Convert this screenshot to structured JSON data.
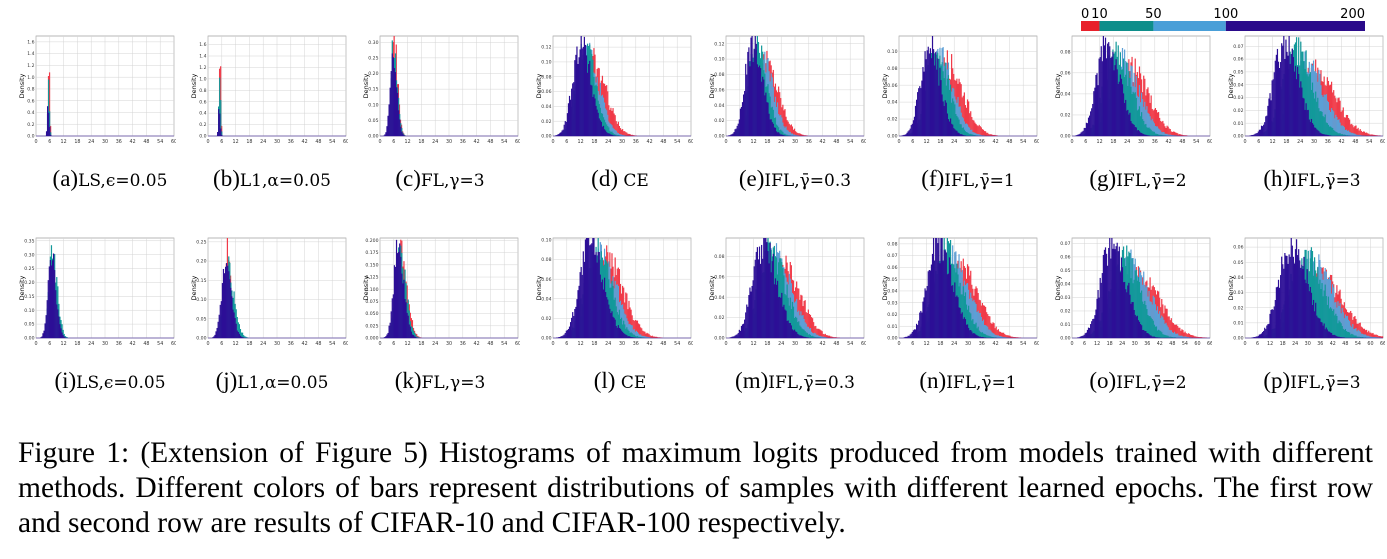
{
  "legend": {
    "ticks": [
      "0",
      "10",
      "50",
      "100",
      "200"
    ],
    "segments": [
      {
        "from": 0,
        "to": 10,
        "color": "#e8202a"
      },
      {
        "from": 10,
        "to": 50,
        "color": "#0e8e8a"
      },
      {
        "from": 50,
        "to": 100,
        "color": "#4a9fd8"
      },
      {
        "from": 100,
        "to": 200,
        "color": "#2a0a8a"
      }
    ]
  },
  "colors": {
    "red": "#f03a48",
    "teal": "#12999a",
    "blue": "#5c9fd6",
    "navy": "#2c0f96"
  },
  "ylabel": "Density",
  "panels": [
    {
      "id": "a",
      "cap": "(a)",
      "meth": "LS,",
      "par": "ϵ=0.05",
      "xt": [
        "0",
        "6",
        "12",
        "18",
        "24",
        "30",
        "36",
        "42",
        "48",
        "54",
        "60"
      ],
      "xmax": 60,
      "yt": [
        "0.0",
        "0.2",
        "0.4",
        "0.6",
        "0.8",
        "1.0",
        "1.2",
        "1.4",
        "1.6"
      ],
      "ymax": 1.7,
      "peaks": [
        {
          "c": "red",
          "mu": 5.6,
          "sd": 0.3,
          "h": 1.62
        },
        {
          "c": "teal",
          "mu": 5.4,
          "sd": 0.35,
          "h": 1.0
        },
        {
          "c": "navy",
          "mu": 5.2,
          "sd": 0.4,
          "h": 0.55
        }
      ]
    },
    {
      "id": "b",
      "cap": "(b)",
      "meth": "L1,",
      "par": "α=0.05",
      "xt": [
        "0",
        "6",
        "12",
        "18",
        "24",
        "30",
        "36",
        "42",
        "48",
        "54",
        "60"
      ],
      "xmax": 60,
      "yt": [
        "0.0",
        "0.2",
        "0.4",
        "0.6",
        "0.8",
        "1.0",
        "1.2",
        "1.4",
        "1.6"
      ],
      "ymax": 1.75,
      "peaks": [
        {
          "c": "red",
          "mu": 5.2,
          "sd": 0.3,
          "h": 1.7
        },
        {
          "c": "teal",
          "mu": 5.0,
          "sd": 0.35,
          "h": 1.25
        },
        {
          "c": "navy",
          "mu": 4.8,
          "sd": 0.4,
          "h": 0.5
        }
      ]
    },
    {
      "id": "c",
      "cap": "(c)",
      "meth": "FL,",
      "par": "γ=3",
      "xt": [
        "0",
        "6",
        "12",
        "18",
        "24",
        "30",
        "36",
        "42",
        "48",
        "54",
        "60"
      ],
      "xmax": 60,
      "yt": [
        "0.00",
        "0.05",
        "0.10",
        "0.15",
        "0.20",
        "0.25",
        "0.30"
      ],
      "ymax": 0.32,
      "peaks": [
        {
          "c": "red",
          "mu": 6.2,
          "sd": 1.3,
          "h": 0.3
        },
        {
          "c": "teal",
          "mu": 5.9,
          "sd": 1.35,
          "h": 0.3
        },
        {
          "c": "navy",
          "mu": 5.5,
          "sd": 1.4,
          "h": 0.29
        }
      ]
    },
    {
      "id": "d",
      "cap": "(d)",
      "meth": "CE",
      "par": "",
      "xt": [
        "0",
        "6",
        "12",
        "18",
        "24",
        "30",
        "36",
        "42",
        "48",
        "54",
        "60"
      ],
      "xmax": 60,
      "yt": [
        "0.00",
        "0.02",
        "0.04",
        "0.06",
        "0.08",
        "0.10",
        "0.12"
      ],
      "ymax": 0.135,
      "peaks": [
        {
          "c": "red",
          "mu": 17,
          "sd": 5.2,
          "h": 0.1
        },
        {
          "c": "blue",
          "mu": 15,
          "sd": 4.5,
          "h": 0.11
        },
        {
          "c": "teal",
          "mu": 13.5,
          "sd": 4.2,
          "h": 0.12
        },
        {
          "c": "navy",
          "mu": 12,
          "sd": 4.0,
          "h": 0.125
        }
      ]
    },
    {
      "id": "e",
      "cap": "(e)",
      "meth": "IFL,",
      "par": "γ̄=0.3",
      "xt": [
        "0",
        "6",
        "12",
        "18",
        "24",
        "30",
        "36",
        "42",
        "48",
        "54",
        "60"
      ],
      "xmax": 60,
      "yt": [
        "0.00",
        "0.02",
        "0.04",
        "0.06",
        "0.08",
        "0.10",
        "0.12"
      ],
      "ymax": 0.13,
      "peaks": [
        {
          "c": "red",
          "mu": 17,
          "sd": 5.0,
          "h": 0.095
        },
        {
          "c": "blue",
          "mu": 15,
          "sd": 4.5,
          "h": 0.105
        },
        {
          "c": "teal",
          "mu": 13,
          "sd": 4.0,
          "h": 0.115
        },
        {
          "c": "navy",
          "mu": 11.5,
          "sd": 3.8,
          "h": 0.12
        }
      ]
    },
    {
      "id": "f",
      "cap": "(f)",
      "meth": "IFL,",
      "par": "γ̄=1",
      "xt": [
        "0",
        "6",
        "12",
        "18",
        "24",
        "30",
        "36",
        "42",
        "48",
        "54",
        "60"
      ],
      "xmax": 60,
      "yt": [
        "0.00",
        "0.02",
        "0.04",
        "0.06",
        "0.08",
        "0.10"
      ],
      "ymax": 0.118,
      "peaks": [
        {
          "c": "red",
          "mu": 21,
          "sd": 6.0,
          "h": 0.085
        },
        {
          "c": "blue",
          "mu": 18,
          "sd": 5.2,
          "h": 0.09
        },
        {
          "c": "teal",
          "mu": 16,
          "sd": 4.8,
          "h": 0.1
        },
        {
          "c": "navy",
          "mu": 13,
          "sd": 4.3,
          "h": 0.107
        }
      ]
    },
    {
      "id": "g",
      "cap": "(g)",
      "meth": "IFL,",
      "par": "γ̄=2",
      "xt": [
        "0",
        "6",
        "12",
        "18",
        "24",
        "30",
        "36",
        "42",
        "48",
        "54",
        "60"
      ],
      "xmax": 60,
      "yt": [
        "0.00",
        "0.02",
        "0.04",
        "0.06",
        "0.08"
      ],
      "ymax": 0.095,
      "peaks": [
        {
          "c": "red",
          "mu": 25,
          "sd": 7.0,
          "h": 0.065
        },
        {
          "c": "blue",
          "mu": 22,
          "sd": 6.3,
          "h": 0.07
        },
        {
          "c": "teal",
          "mu": 19,
          "sd": 5.8,
          "h": 0.08
        },
        {
          "c": "navy",
          "mu": 15,
          "sd": 5.0,
          "h": 0.088
        }
      ]
    },
    {
      "id": "h",
      "cap": "(h)",
      "meth": "IFL,",
      "par": "γ̄=3",
      "xt": [
        "0",
        "6",
        "12",
        "18",
        "24",
        "30",
        "36",
        "42",
        "48",
        "54",
        "60"
      ],
      "xmax": 60,
      "yt": [
        "0.00",
        "0.01",
        "0.02",
        "0.03",
        "0.04",
        "0.05",
        "0.06",
        "0.07"
      ],
      "ymax": 0.078,
      "peaks": [
        {
          "c": "red",
          "mu": 30,
          "sd": 8.0,
          "h": 0.05
        },
        {
          "c": "blue",
          "mu": 26,
          "sd": 7.0,
          "h": 0.06
        },
        {
          "c": "teal",
          "mu": 22,
          "sd": 6.3,
          "h": 0.068
        },
        {
          "c": "navy",
          "mu": 17,
          "sd": 5.4,
          "h": 0.072
        }
      ]
    },
    {
      "id": "i",
      "cap": "(i)",
      "meth": "LS,",
      "par": "ϵ=0.05",
      "xt": [
        "0",
        "6",
        "12",
        "18",
        "24",
        "30",
        "36",
        "42",
        "48",
        "54",
        "60"
      ],
      "xmax": 60,
      "yt": [
        "0.00",
        "0.05",
        "0.10",
        "0.15",
        "0.20",
        "0.25",
        "0.30",
        "0.35"
      ],
      "ymax": 0.36,
      "peaks": [
        {
          "c": "teal",
          "mu": 7.2,
          "sd": 1.8,
          "h": 0.3
        },
        {
          "c": "navy",
          "mu": 6.6,
          "sd": 1.7,
          "h": 0.32
        }
      ]
    },
    {
      "id": "j",
      "cap": "(j)",
      "meth": "L1,",
      "par": "α=0.05",
      "xt": [
        "0",
        "6",
        "12",
        "18",
        "24",
        "30",
        "36",
        "42",
        "48",
        "54",
        "60"
      ],
      "xmax": 60,
      "yt": [
        "0.00",
        "0.05",
        "0.10",
        "0.15",
        "0.20",
        "0.25"
      ],
      "ymax": 0.26,
      "peaks": [
        {
          "c": "red",
          "mu": 8.5,
          "sd": 1.2,
          "h": 0.24
        },
        {
          "c": "teal",
          "mu": 8.6,
          "sd": 2.4,
          "h": 0.18
        },
        {
          "c": "navy",
          "mu": 7.6,
          "sd": 2.2,
          "h": 0.17
        }
      ]
    },
    {
      "id": "k",
      "cap": "(k)",
      "meth": "FL,",
      "par": "γ=3",
      "xt": [
        "0",
        "6",
        "12",
        "18",
        "24",
        "30",
        "36",
        "42",
        "48",
        "54",
        "60"
      ],
      "xmax": 60,
      "yt": [
        "0.000",
        "0.025",
        "0.050",
        "0.075",
        "0.100",
        "0.125",
        "0.150",
        "0.175",
        "0.200"
      ],
      "ymax": 0.205,
      "peaks": [
        {
          "c": "red",
          "mu": 9.0,
          "sd": 2.4,
          "h": 0.17
        },
        {
          "c": "teal",
          "mu": 8.6,
          "sd": 2.3,
          "h": 0.18
        },
        {
          "c": "navy",
          "mu": 7.8,
          "sd": 2.2,
          "h": 0.19
        }
      ]
    },
    {
      "id": "l",
      "cap": "(l)",
      "meth": "CE",
      "par": "",
      "xt": [
        "0",
        "6",
        "12",
        "18",
        "24",
        "30",
        "36",
        "42",
        "48",
        "54",
        "60"
      ],
      "xmax": 60,
      "yt": [
        "0.00",
        "0.02",
        "0.04",
        "0.06",
        "0.08",
        "0.10"
      ],
      "ymax": 0.102,
      "peaks": [
        {
          "c": "red",
          "mu": 23,
          "sd": 6.5,
          "h": 0.08
        },
        {
          "c": "blue",
          "mu": 20.5,
          "sd": 6.0,
          "h": 0.085
        },
        {
          "c": "teal",
          "mu": 18.5,
          "sd": 5.6,
          "h": 0.09
        },
        {
          "c": "navy",
          "mu": 16,
          "sd": 5.2,
          "h": 0.095
        }
      ]
    },
    {
      "id": "m",
      "cap": "(m)",
      "meth": "IFL,",
      "par": "γ̄=0.3",
      "xt": [
        "0",
        "6",
        "12",
        "18",
        "24",
        "30",
        "36",
        "42",
        "48",
        "54",
        "60"
      ],
      "xmax": 60,
      "yt": [
        "0.00",
        "0.02",
        "0.04",
        "0.06",
        "0.08"
      ],
      "ymax": 0.098,
      "peaks": [
        {
          "c": "red",
          "mu": 24,
          "sd": 6.8,
          "h": 0.075
        },
        {
          "c": "blue",
          "mu": 21.5,
          "sd": 6.2,
          "h": 0.08
        },
        {
          "c": "teal",
          "mu": 19,
          "sd": 5.8,
          "h": 0.088
        },
        {
          "c": "navy",
          "mu": 16,
          "sd": 5.3,
          "h": 0.092
        }
      ]
    },
    {
      "id": "n",
      "cap": "(n)",
      "meth": "IFL,",
      "par": "γ̄=1",
      "xt": [
        "0",
        "6",
        "12",
        "18",
        "24",
        "30",
        "36",
        "42",
        "48",
        "54",
        "60"
      ],
      "xmax": 60,
      "yt": [
        "0.00",
        "0.01",
        "0.02",
        "0.03",
        "0.04",
        "0.05",
        "0.06",
        "0.07",
        "0.08"
      ],
      "ymax": 0.085,
      "peaks": [
        {
          "c": "red",
          "mu": 26,
          "sd": 7.2,
          "h": 0.06
        },
        {
          "c": "blue",
          "mu": 23,
          "sd": 6.6,
          "h": 0.068
        },
        {
          "c": "teal",
          "mu": 20,
          "sd": 6.0,
          "h": 0.075
        },
        {
          "c": "navy",
          "mu": 17,
          "sd": 5.5,
          "h": 0.08
        }
      ]
    },
    {
      "id": "o",
      "cap": "(o)",
      "meth": "IFL,",
      "par": "γ̄=2",
      "xt": [
        "0",
        "6",
        "12",
        "18",
        "24",
        "30",
        "36",
        "42",
        "48",
        "54",
        "60",
        "66"
      ],
      "xmax": 66,
      "yt": [
        "0.00",
        "0.01",
        "0.02",
        "0.03",
        "0.04",
        "0.05",
        "0.06",
        "0.07"
      ],
      "ymax": 0.074,
      "peaks": [
        {
          "c": "red",
          "mu": 32,
          "sd": 8.8,
          "h": 0.045
        },
        {
          "c": "blue",
          "mu": 28,
          "sd": 8.0,
          "h": 0.055
        },
        {
          "c": "teal",
          "mu": 24,
          "sd": 7.0,
          "h": 0.062
        },
        {
          "c": "navy",
          "mu": 19,
          "sd": 6.0,
          "h": 0.07
        }
      ]
    },
    {
      "id": "p",
      "cap": "(p)",
      "meth": "IFL,",
      "par": "γ̄=3",
      "xt": [
        "0",
        "6",
        "12",
        "18",
        "24",
        "30",
        "36",
        "42",
        "48",
        "54",
        "60",
        "66"
      ],
      "xmax": 66,
      "yt": [
        "0.00",
        "0.01",
        "0.02",
        "0.03",
        "0.04",
        "0.05",
        "0.06"
      ],
      "ymax": 0.066,
      "peaks": [
        {
          "c": "red",
          "mu": 36,
          "sd": 9.5,
          "h": 0.04
        },
        {
          "c": "blue",
          "mu": 32,
          "sd": 8.8,
          "h": 0.05
        },
        {
          "c": "teal",
          "mu": 28,
          "sd": 8.0,
          "h": 0.056
        },
        {
          "c": "navy",
          "mu": 22,
          "sd": 6.8,
          "h": 0.062
        }
      ]
    }
  ],
  "caption": {
    "label": "Figure 1:",
    "text": "(Extension of Figure 5) Histograms of maximum logits produced from models trained with different methods. Different colors of bars represent distributions of samples with different learned epochs. The first row and second row are results of CIFAR-10 and CIFAR-100 respectively."
  }
}
